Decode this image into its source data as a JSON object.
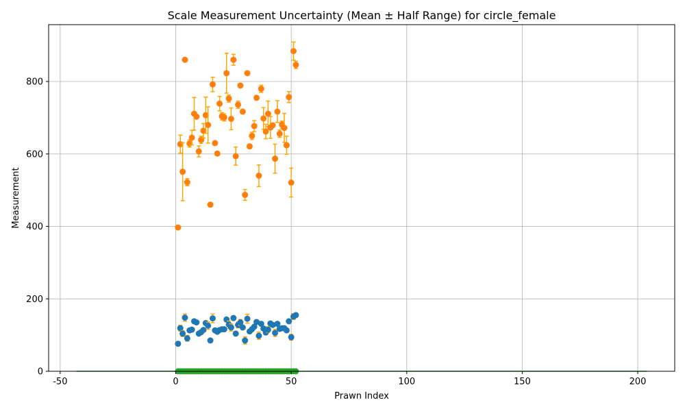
{
  "chart_data": {
    "type": "scatter",
    "title": "Scale Measurement Uncertainty (Mean ± Half Range) for circle_female",
    "xlabel": "Prawn Index",
    "ylabel": "Measurement",
    "xlim": [
      -55,
      216
    ],
    "ylim": [
      0,
      957
    ],
    "x_ticks": [
      -50,
      0,
      50,
      100,
      150,
      200
    ],
    "y_ticks": [
      0,
      200,
      400,
      600,
      800
    ],
    "grid": true,
    "colors": {
      "orange": "#ff7f0e",
      "blue": "#1f77b4",
      "green": "#2ca02c",
      "errorbar": "#ffa500"
    },
    "series": [
      {
        "color": "#ff7f0e",
        "x": [
          1,
          2,
          3,
          4,
          5,
          6,
          7,
          8,
          9,
          10,
          11,
          12,
          13,
          14,
          15,
          16,
          17,
          18,
          19,
          20,
          21,
          22,
          23,
          24,
          25,
          26,
          27,
          28,
          29,
          30,
          31,
          32,
          33,
          34,
          35,
          36,
          37,
          38,
          39,
          40,
          41,
          42,
          43,
          44,
          45,
          46,
          47,
          48,
          49,
          50,
          51,
          52
        ],
        "y": [
          397,
          627,
          551,
          860,
          522,
          629,
          645,
          711,
          703,
          607,
          639,
          664,
          707,
          680,
          460,
          792,
          630,
          601,
          739,
          704,
          701,
          823,
          753,
          697,
          860,
          594,
          736,
          789,
          717,
          487,
          823,
          621,
          650,
          677,
          755,
          540,
          780,
          698,
          662,
          711,
          673,
          679,
          587,
          717,
          656,
          681,
          672,
          624,
          757,
          521,
          884,
          846
        ],
        "err": [
          0,
          25,
          80,
          0,
          10,
          10,
          20,
          45,
          0,
          15,
          10,
          20,
          50,
          50,
          0,
          20,
          0,
          0,
          20,
          10,
          10,
          55,
          10,
          30,
          15,
          25,
          10,
          0,
          0,
          15,
          0,
          0,
          10,
          15,
          0,
          30,
          10,
          30,
          20,
          35,
          30,
          0,
          40,
          30,
          10,
          10,
          40,
          25,
          15,
          40,
          25,
          10
        ]
      },
      {
        "color": "#1f77b4",
        "x": [
          1,
          2,
          3,
          4,
          5,
          6,
          7,
          8,
          9,
          10,
          11,
          12,
          13,
          14,
          15,
          16,
          17,
          18,
          19,
          20,
          21,
          22,
          23,
          24,
          25,
          26,
          27,
          28,
          29,
          30,
          31,
          32,
          33,
          34,
          35,
          36,
          37,
          38,
          39,
          40,
          41,
          42,
          43,
          44,
          45,
          46,
          47,
          48,
          49,
          50,
          51,
          52
        ],
        "y": [
          76,
          119,
          104,
          148,
          91,
          113,
          115,
          138,
          135,
          104,
          108,
          114,
          133,
          126,
          85,
          146,
          113,
          109,
          114,
          116,
          116,
          143,
          129,
          121,
          147,
          104,
          128,
          135,
          121,
          85,
          145,
          110,
          116,
          123,
          136,
          98,
          131,
          118,
          107,
          115,
          132,
          128,
          106,
          131,
          117,
          119,
          119,
          113,
          138,
          94,
          151,
          155
        ],
        "err": [
          0,
          8,
          8,
          10,
          8,
          4,
          4,
          4,
          0,
          5,
          5,
          3,
          5,
          10,
          0,
          12,
          0,
          0,
          0,
          3,
          3,
          5,
          10,
          10,
          5,
          5,
          8,
          8,
          0,
          10,
          12,
          5,
          5,
          5,
          5,
          10,
          5,
          5,
          5,
          8,
          5,
          5,
          10,
          5,
          5,
          5,
          5,
          5,
          4,
          8,
          8,
          5
        ]
      },
      {
        "color": "#2ca02c",
        "x": [
          1,
          2,
          3,
          4,
          5,
          6,
          7,
          8,
          9,
          10,
          11,
          12,
          13,
          14,
          15,
          16,
          17,
          18,
          19,
          20,
          21,
          22,
          23,
          24,
          25,
          26,
          27,
          28,
          29,
          30,
          31,
          32,
          33,
          34,
          35,
          36,
          37,
          38,
          39,
          40,
          41,
          42,
          43,
          44,
          45,
          46,
          47,
          48,
          49,
          50,
          51,
          52
        ],
        "y": [
          0,
          0,
          0,
          0,
          0,
          0,
          0,
          0,
          0,
          0,
          0,
          0,
          0,
          0,
          0,
          0,
          0,
          0,
          0,
          0,
          0,
          0,
          0,
          0,
          0,
          0,
          0,
          0,
          0,
          0,
          0,
          0,
          0,
          0,
          0,
          0,
          0,
          0,
          0,
          0,
          0,
          0,
          0,
          0,
          0,
          0,
          0,
          0,
          0,
          0,
          0,
          0
        ],
        "err": [
          0,
          0,
          0,
          0,
          0,
          0,
          0,
          0,
          0,
          0,
          0,
          0,
          0,
          0,
          0,
          0,
          0,
          0,
          0,
          0,
          0,
          0,
          0,
          0,
          0,
          0,
          0,
          0,
          0,
          0,
          0,
          0,
          0,
          0,
          0,
          0,
          0,
          0,
          0,
          0,
          0,
          0,
          0,
          0,
          0,
          0,
          0,
          0,
          0,
          0,
          0,
          0
        ]
      }
    ],
    "baseline": {
      "color": "#2ca02c",
      "x_from": -43,
      "x_to": 204,
      "y": 0
    }
  }
}
